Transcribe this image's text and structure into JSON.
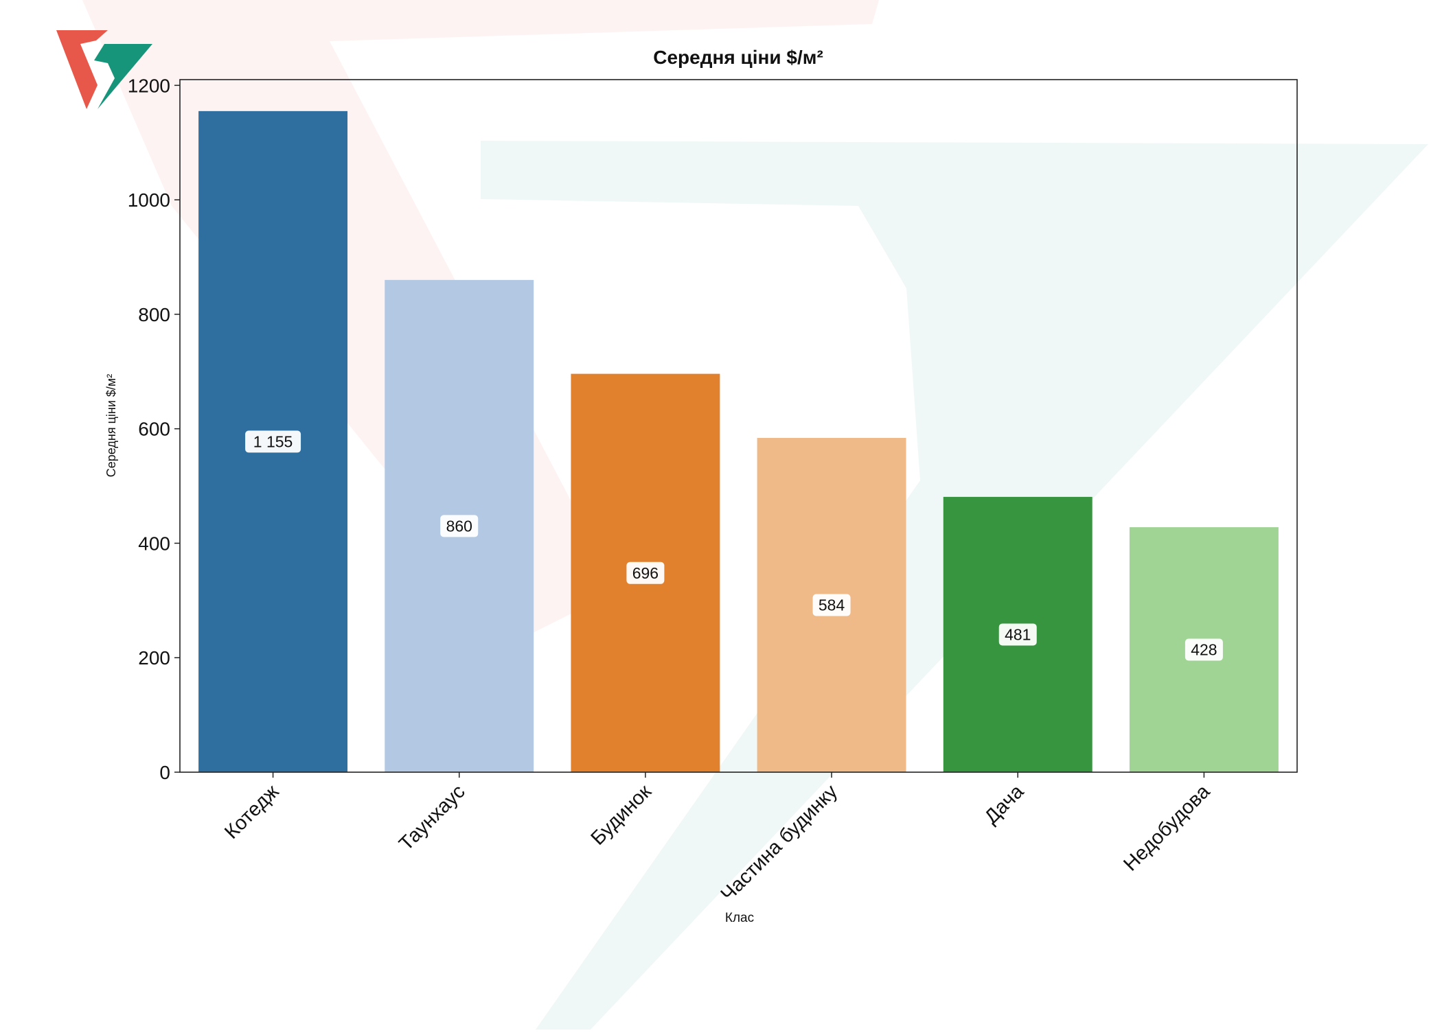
{
  "colors": {
    "series": [
      "#2e6f9f",
      "#b3c8e2",
      "#e1812d",
      "#efba88",
      "#37943f",
      "#a0d494"
    ],
    "axis": "#222222",
    "watermark_red": "#e8584a",
    "watermark_green": "#17957a"
  },
  "chart_data": {
    "type": "bar",
    "title": "Середня ціни $/м²",
    "xlabel": "Клас",
    "ylabel": "Середня ціни $/м²",
    "categories": [
      "Котедж",
      "Таунхаус",
      "Будинок",
      "Частина будинку",
      "Дача",
      "Недобудова"
    ],
    "values": [
      1155,
      860,
      696,
      584,
      481,
      428
    ],
    "value_labels": [
      "1 155",
      "860",
      "696",
      "584",
      "481",
      "428"
    ],
    "ylim": [
      0,
      1210
    ],
    "yticks": [
      0,
      200,
      400,
      600,
      800,
      1000,
      1200
    ],
    "grid": false,
    "legend": "none"
  }
}
